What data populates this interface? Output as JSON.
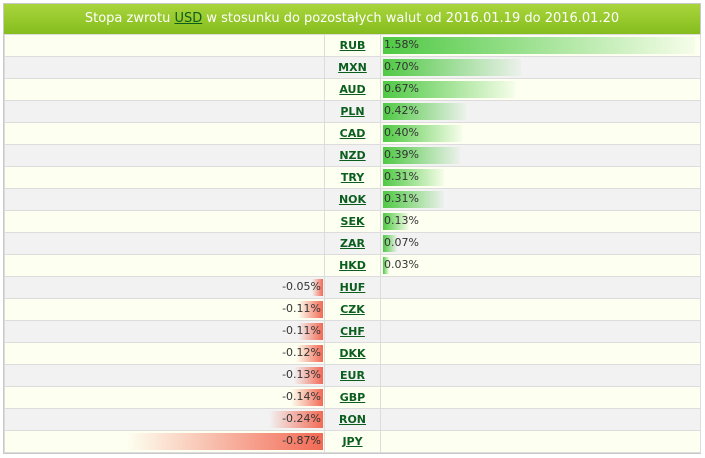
{
  "header": {
    "prefix": "Stopa zwrotu",
    "base_currency": "USD",
    "suffix": "w stosunku do pozostałych walut od 2016.01.19 do 2016.01.20"
  },
  "rows": [
    {
      "code": "RUB",
      "value": "1.58%",
      "magnitude": 1.58,
      "sign": "pos"
    },
    {
      "code": "MXN",
      "value": "0.70%",
      "magnitude": 0.7,
      "sign": "pos"
    },
    {
      "code": "AUD",
      "value": "0.67%",
      "magnitude": 0.67,
      "sign": "pos"
    },
    {
      "code": "PLN",
      "value": "0.42%",
      "magnitude": 0.42,
      "sign": "pos"
    },
    {
      "code": "CAD",
      "value": "0.40%",
      "magnitude": 0.4,
      "sign": "pos"
    },
    {
      "code": "NZD",
      "value": "0.39%",
      "magnitude": 0.39,
      "sign": "pos"
    },
    {
      "code": "TRY",
      "value": "0.31%",
      "magnitude": 0.31,
      "sign": "pos"
    },
    {
      "code": "NOK",
      "value": "0.31%",
      "magnitude": 0.31,
      "sign": "pos"
    },
    {
      "code": "SEK",
      "value": "0.13%",
      "magnitude": 0.13,
      "sign": "pos"
    },
    {
      "code": "ZAR",
      "value": "0.07%",
      "magnitude": 0.07,
      "sign": "pos"
    },
    {
      "code": "HKD",
      "value": "0.03%",
      "magnitude": 0.03,
      "sign": "pos"
    },
    {
      "code": "HUF",
      "value": "-0.05%",
      "magnitude": 0.05,
      "sign": "neg"
    },
    {
      "code": "CZK",
      "value": "-0.11%",
      "magnitude": 0.11,
      "sign": "neg"
    },
    {
      "code": "CHF",
      "value": "-0.11%",
      "magnitude": 0.11,
      "sign": "neg"
    },
    {
      "code": "DKK",
      "value": "-0.12%",
      "magnitude": 0.12,
      "sign": "neg"
    },
    {
      "code": "EUR",
      "value": "-0.13%",
      "magnitude": 0.13,
      "sign": "neg"
    },
    {
      "code": "GBP",
      "value": "-0.14%",
      "magnitude": 0.14,
      "sign": "neg"
    },
    {
      "code": "RON",
      "value": "-0.24%",
      "magnitude": 0.24,
      "sign": "neg"
    },
    {
      "code": "JPY",
      "value": "-0.87%",
      "magnitude": 0.87,
      "sign": "neg"
    }
  ],
  "colors": {
    "header": "#95c52a",
    "positive": "#4fc944",
    "negative": "#f26a55",
    "link": "#0b5e1e"
  }
}
